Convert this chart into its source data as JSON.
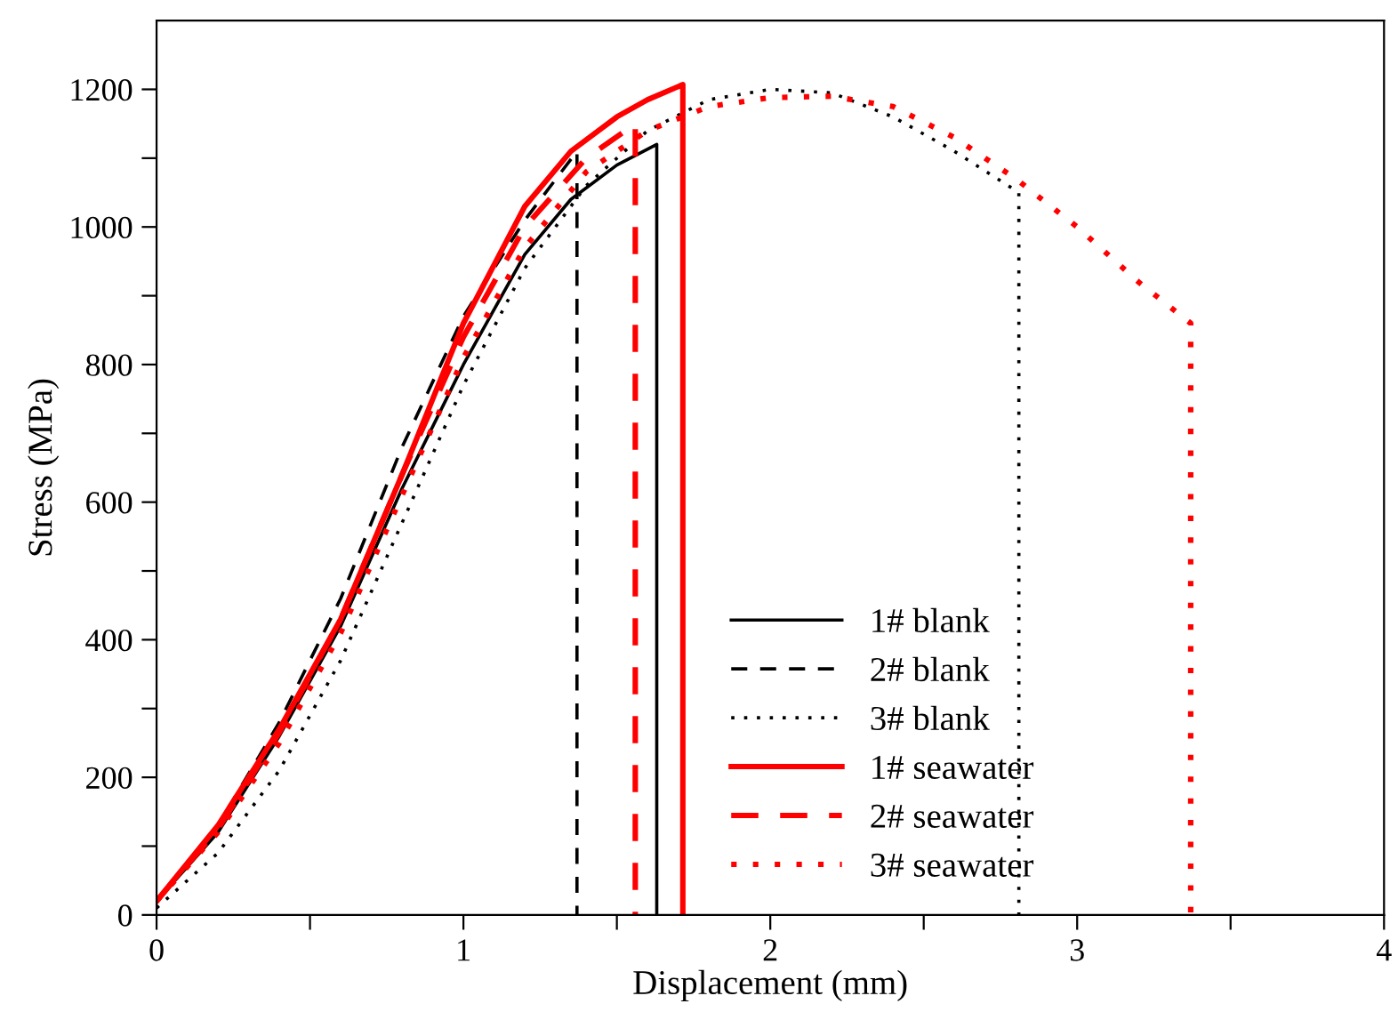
{
  "chart_data": {
    "type": "line",
    "xlabel": "Displacement (mm)",
    "ylabel": "Stress (MPa)",
    "xlim": [
      0,
      4
    ],
    "ylim": [
      0,
      1300
    ],
    "xticks": [
      0,
      {
        "value": 0.5,
        "label": null
      },
      1,
      {
        "value": 1.5,
        "label": null
      },
      2,
      {
        "value": 2.5,
        "label": null
      },
      3,
      {
        "value": 3.5,
        "label": null
      },
      4
    ],
    "yticks": [
      0,
      {
        "value": 100,
        "label": null
      },
      200,
      {
        "value": 300,
        "label": null
      },
      400,
      {
        "value": 500,
        "label": null
      },
      600,
      {
        "value": 700,
        "label": null
      },
      800,
      {
        "value": 900,
        "label": null
      },
      1000,
      {
        "value": 1100,
        "label": null
      },
      1200
    ],
    "grid": false,
    "legend": "bottom right",
    "marker": "none",
    "series": [
      {
        "name": "1# blank",
        "color": "#000000",
        "line_style": "solid",
        "x": [
          0,
          0.2,
          0.4,
          0.6,
          0.8,
          1.0,
          1.2,
          1.35,
          1.5,
          1.63,
          1.63
        ],
        "values": [
          20,
          120,
          260,
          420,
          620,
          800,
          960,
          1040,
          1090,
          1120,
          0
        ]
      },
      {
        "name": "2# blank",
        "color": "#000000",
        "line_style": "dashed",
        "x": [
          0,
          0.2,
          0.4,
          0.6,
          0.8,
          1.0,
          1.2,
          1.37,
          1.37
        ],
        "values": [
          20,
          130,
          280,
          460,
          680,
          870,
          1010,
          1110,
          0
        ]
      },
      {
        "name": "3# blank",
        "color": "#000000",
        "line_style": "dotted",
        "x": [
          0,
          0.2,
          0.4,
          0.6,
          0.8,
          1.0,
          1.2,
          1.4,
          1.6,
          1.8,
          2.0,
          2.2,
          2.4,
          2.6,
          2.81,
          2.81
        ],
        "values": [
          10,
          90,
          210,
          370,
          570,
          770,
          940,
          1060,
          1140,
          1185,
          1200,
          1195,
          1160,
          1110,
          1050,
          0
        ]
      },
      {
        "name": "1# seawater",
        "color": "#ff0000",
        "line_style": "solid",
        "x": [
          0,
          0.2,
          0.4,
          0.6,
          0.8,
          1.0,
          1.2,
          1.35,
          1.5,
          1.6,
          1.715,
          1.715
        ],
        "values": [
          20,
          130,
          270,
          430,
          640,
          860,
          1030,
          1110,
          1160,
          1185,
          1207,
          0
        ]
      },
      {
        "name": "2# seawater",
        "color": "#ff0000",
        "line_style": "dashed",
        "x": [
          0,
          0.2,
          0.4,
          0.6,
          0.8,
          1.0,
          1.2,
          1.4,
          1.56,
          1.56
        ],
        "values": [
          20,
          125,
          265,
          430,
          640,
          840,
          1000,
          1100,
          1150,
          0
        ]
      },
      {
        "name": "3# seawater",
        "color": "#ff0000",
        "line_style": "dotted",
        "x": [
          0,
          0.2,
          0.4,
          0.6,
          0.8,
          1.0,
          1.2,
          1.4,
          1.6,
          1.8,
          2.0,
          2.2,
          2.4,
          2.6,
          2.8,
          3.0,
          3.2,
          3.37,
          3.37
        ],
        "values": [
          20,
          120,
          250,
          410,
          610,
          810,
          970,
          1080,
          1140,
          1175,
          1188,
          1190,
          1175,
          1130,
          1070,
          1000,
          920,
          860,
          0
        ]
      }
    ]
  }
}
